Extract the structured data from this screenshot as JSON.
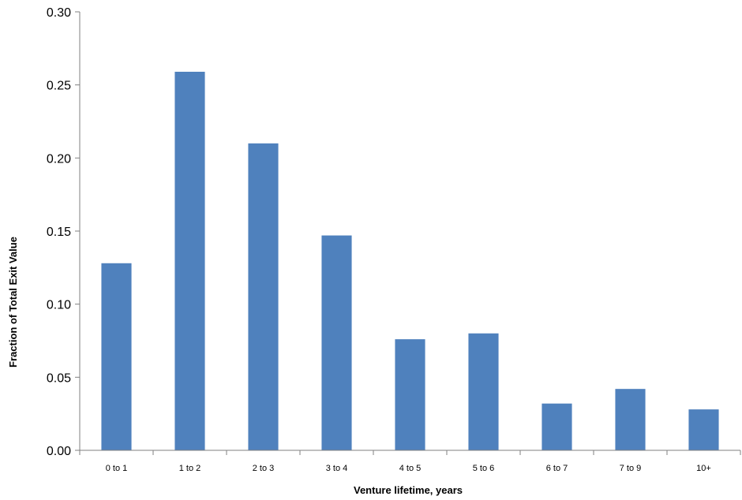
{
  "chart_data": {
    "type": "bar",
    "title": "",
    "xlabel": "Venture lifetime, years",
    "ylabel": "Fraction of Total Exit Value",
    "categories": [
      "0 to 1",
      "1 to 2",
      "2 to 3",
      "3 to 4",
      "4 to 5",
      "5 to 6",
      "6 to 7",
      "7 to 9",
      "10+"
    ],
    "values": [
      0.128,
      0.259,
      0.21,
      0.147,
      0.076,
      0.08,
      0.032,
      0.042,
      0.028
    ],
    "ylim": [
      0,
      0.3
    ],
    "yticks": [
      "0.00",
      "0.05",
      "0.10",
      "0.15",
      "0.20",
      "0.25",
      "0.30"
    ],
    "bar_color": "#4F81BD",
    "grid": false,
    "legend": "none"
  }
}
